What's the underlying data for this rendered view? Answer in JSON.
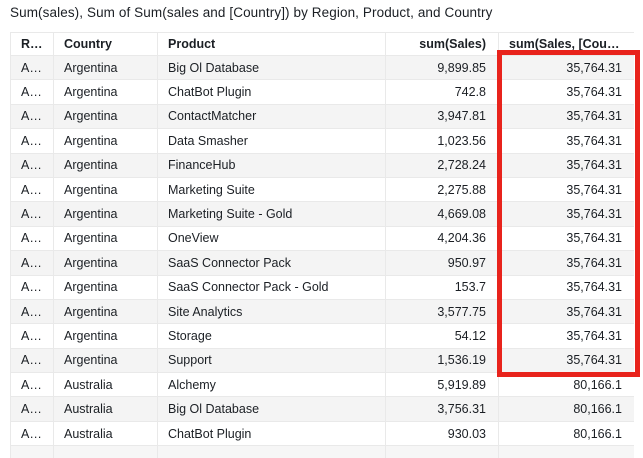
{
  "title": "Sum(sales), Sum of Sum(sales and [Country]) by Region, Product, and Country",
  "table": {
    "columns": [
      {
        "label": "Regi...",
        "align": "left"
      },
      {
        "label": "Country",
        "align": "left"
      },
      {
        "label": "Product",
        "align": "left"
      },
      {
        "label": "sum(Sales)",
        "align": "right"
      },
      {
        "label": "sum(Sales, [Country])",
        "align": "right"
      }
    ],
    "rows": [
      [
        "AMER",
        "Argentina",
        "Big Ol Database",
        "9,899.85",
        "35,764.31"
      ],
      [
        "AMER",
        "Argentina",
        "ChatBot Plugin",
        "742.8",
        "35,764.31"
      ],
      [
        "AMER",
        "Argentina",
        "ContactMatcher",
        "3,947.81",
        "35,764.31"
      ],
      [
        "AMER",
        "Argentina",
        "Data Smasher",
        "1,023.56",
        "35,764.31"
      ],
      [
        "AMER",
        "Argentina",
        "FinanceHub",
        "2,728.24",
        "35,764.31"
      ],
      [
        "AMER",
        "Argentina",
        "Marketing Suite",
        "2,275.88",
        "35,764.31"
      ],
      [
        "AMER",
        "Argentina",
        "Marketing Suite - Gold",
        "4,669.08",
        "35,764.31"
      ],
      [
        "AMER",
        "Argentina",
        "OneView",
        "4,204.36",
        "35,764.31"
      ],
      [
        "AMER",
        "Argentina",
        "SaaS Connector Pack",
        "950.97",
        "35,764.31"
      ],
      [
        "AMER",
        "Argentina",
        "SaaS Connector Pack - Gold",
        "153.7",
        "35,764.31"
      ],
      [
        "AMER",
        "Argentina",
        "Site Analytics",
        "3,577.75",
        "35,764.31"
      ],
      [
        "AMER",
        "Argentina",
        "Storage",
        "54.12",
        "35,764.31"
      ],
      [
        "AMER",
        "Argentina",
        "Support",
        "1,536.19",
        "35,764.31"
      ],
      [
        "APJ",
        "Australia",
        "Alchemy",
        "5,919.89",
        "80,166.1"
      ],
      [
        "APJ",
        "Australia",
        "Big Ol Database",
        "3,756.31",
        "80,166.1"
      ],
      [
        "APJ",
        "Australia",
        "ChatBot Plugin",
        "930.03",
        "80,166.1"
      ]
    ]
  },
  "annotation": {
    "shape": "highlight-rectangle",
    "color": "#e8231c",
    "highlighted_column": "sum(Sales, [Country])",
    "highlighted_value": "35,764.31"
  },
  "colors": {
    "stripe": "#f4f4f4",
    "grid_border": "#e9e9e9",
    "text": "#1b1f24",
    "background": "#ffffff"
  }
}
